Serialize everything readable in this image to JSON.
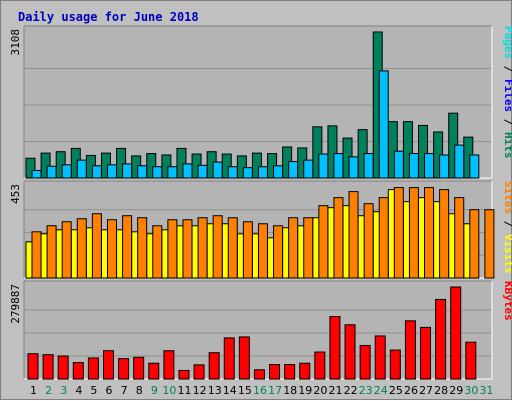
{
  "chart_data": {
    "type": "bar",
    "title": "Daily usage for June 2018",
    "colors": {
      "background": "#c0c0c0",
      "plot_background": "#b4b4b4",
      "title": "#0000c0",
      "hits": "#00805c",
      "files": "#00c0ff",
      "pages": "#00e0e0",
      "visits": "#ffff00",
      "sites": "#ff8000",
      "kbytes": "#ff0000",
      "weekday_label": "#000000",
      "weekend_label": "#00805c"
    },
    "categories": [
      "1",
      "2",
      "3",
      "4",
      "5",
      "6",
      "7",
      "8",
      "9",
      "10",
      "11",
      "12",
      "13",
      "14",
      "15",
      "16",
      "17",
      "18",
      "19",
      "20",
      "21",
      "22",
      "23",
      "24",
      "25",
      "26",
      "27",
      "28",
      "29",
      "30",
      "31"
    ],
    "weekend_days": [
      "2",
      "3",
      "9",
      "10",
      "16",
      "17",
      "23",
      "24",
      "30",
      "31"
    ],
    "panels": [
      {
        "id": "hits-files-pages",
        "max_label": "3108",
        "max_value": 3108,
        "right_label": [
          "Pages",
          " / ",
          "Files",
          " / ",
          "Hits"
        ],
        "right_label_colors": [
          "#00e0e0",
          "#000000",
          "#0000ff",
          "#000000",
          "#00805c"
        ],
        "series": [
          {
            "name": "Hits",
            "values": [
              420,
              530,
              560,
              630,
              480,
              530,
              630,
              470,
              520,
              490,
              630,
              510,
              560,
              510,
              470,
              530,
              520,
              660,
              640,
              1090,
              1110,
              850,
              1030,
              3108,
              1200,
              1200,
              1120,
              980,
              1380,
              870,
              0
            ]
          },
          {
            "name": "Files",
            "values": [
              160,
              250,
              280,
              380,
              260,
              280,
              300,
              260,
              240,
              240,
              300,
              270,
              340,
              240,
              220,
              240,
              260,
              350,
              380,
              510,
              520,
              450,
              520,
              2280,
              570,
              520,
              520,
              490,
              700,
              490,
              0
            ]
          }
        ]
      },
      {
        "id": "visits-sites",
        "max_label": "453",
        "max_value": 453,
        "right_label": [
          "Sites",
          " / ",
          "Visits"
        ],
        "right_label_colors": [
          "#ff8000",
          "#000000",
          "#ffff00"
        ],
        "series": [
          {
            "name": "Visits",
            "values": [
              180,
              220,
              240,
              240,
              250,
              240,
              240,
              230,
              220,
              240,
              260,
              260,
              270,
              270,
              220,
              220,
              200,
              250,
              260,
              300,
              350,
              360,
              310,
              330,
              440,
              380,
              400,
              380,
              320,
              270,
              0
            ]
          },
          {
            "name": "Sites",
            "values": [
              230,
              260,
              280,
              295,
              320,
              290,
              310,
              300,
              260,
              290,
              290,
              300,
              310,
              300,
              280,
              270,
              260,
              300,
              300,
              360,
              400,
              430,
              370,
              400,
              450,
              450,
              450,
              440,
              400,
              340,
              340
            ]
          }
        ]
      },
      {
        "id": "kbytes",
        "max_label": "279887",
        "max_value": 279887,
        "right_label": [
          "KBytes"
        ],
        "right_label_colors": [
          "#ff0000"
        ],
        "series": [
          {
            "name": "KBytes",
            "values": [
              77000,
              74000,
              70000,
              50000,
              64000,
              86000,
              62000,
              66000,
              48000,
              86000,
              26000,
              43000,
              80000,
              125000,
              128000,
              28000,
              44000,
              44000,
              48000,
              82000,
              190000,
              165000,
              102000,
              131000,
              88000,
              177000,
              157000,
              242000,
              279887,
              112000,
              0
            ]
          }
        ]
      }
    ]
  }
}
